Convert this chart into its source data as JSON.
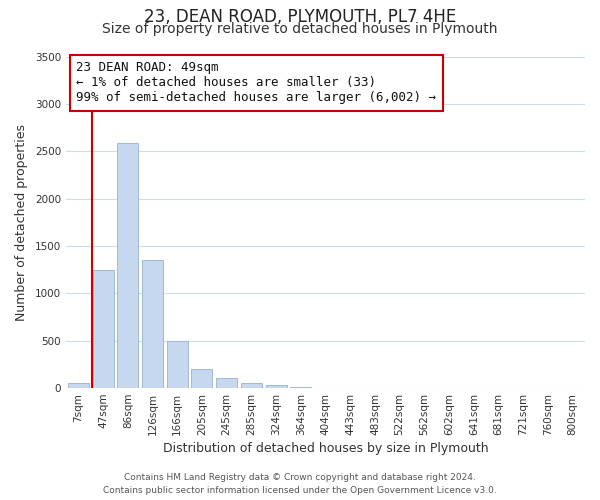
{
  "title": "23, DEAN ROAD, PLYMOUTH, PL7 4HE",
  "subtitle": "Size of property relative to detached houses in Plymouth",
  "xlabel": "Distribution of detached houses by size in Plymouth",
  "ylabel": "Number of detached properties",
  "bar_labels": [
    "7sqm",
    "47sqm",
    "86sqm",
    "126sqm",
    "166sqm",
    "205sqm",
    "245sqm",
    "285sqm",
    "324sqm",
    "364sqm",
    "404sqm",
    "443sqm",
    "483sqm",
    "522sqm",
    "562sqm",
    "602sqm",
    "641sqm",
    "681sqm",
    "721sqm",
    "760sqm",
    "800sqm"
  ],
  "bar_values": [
    50,
    1250,
    2590,
    1350,
    500,
    200,
    110,
    50,
    30,
    10,
    5,
    3,
    2,
    0,
    0,
    0,
    0,
    0,
    0,
    0,
    0
  ],
  "bar_color": "#c5d8f0",
  "bar_edge_color": "#a0b8d8",
  "highlight_color": "#cc0000",
  "annotation_text": "23 DEAN ROAD: 49sqm\n← 1% of detached houses are smaller (33)\n99% of semi-detached houses are larger (6,002) →",
  "annotation_box_color": "#ffffff",
  "annotation_box_edge": "#cc0000",
  "red_line_x": 0.57,
  "ylim": [
    0,
    3500
  ],
  "yticks": [
    0,
    500,
    1000,
    1500,
    2000,
    2500,
    3000,
    3500
  ],
  "footer_line1": "Contains HM Land Registry data © Crown copyright and database right 2024.",
  "footer_line2": "Contains public sector information licensed under the Open Government Licence v3.0.",
  "bg_color": "#ffffff",
  "grid_color": "#d0dde8",
  "title_fontsize": 12,
  "subtitle_fontsize": 10,
  "axis_label_fontsize": 9,
  "tick_fontsize": 7.5,
  "footer_fontsize": 6.5,
  "annotation_fontsize": 9
}
